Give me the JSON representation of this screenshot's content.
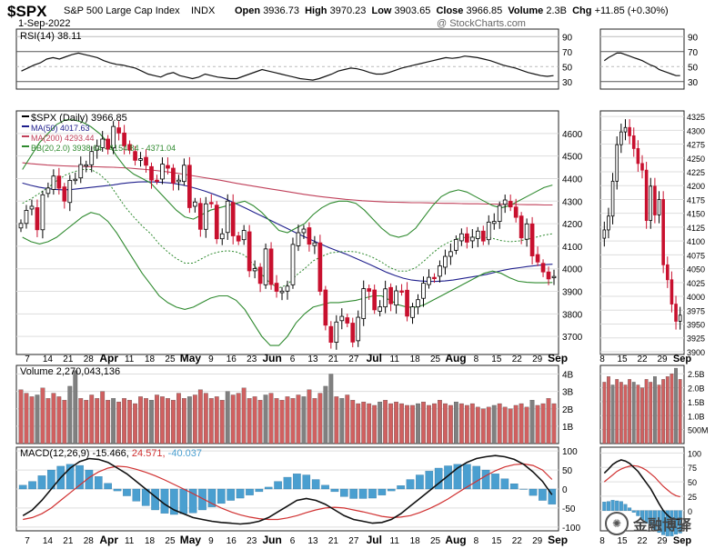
{
  "header": {
    "symbol": "$SPX",
    "name": "S&P 500 Large Cap Index",
    "exchange": "INDX",
    "date": "1-Sep-2022",
    "open_label": "Open",
    "open": "3936.73",
    "high_label": "High",
    "high": "3970.23",
    "low_label": "Low",
    "low": "3903.65",
    "close_label": "Close",
    "close": "3966.85",
    "volume_label": "Volume",
    "volume": "2.3B",
    "chg_label": "Chg",
    "chg": "+11.85 (+0.30%)",
    "attribution": "@ StockCharts.com"
  },
  "watermark": "金融博驿",
  "colors": {
    "up": "#ffffff",
    "down": "#c8102e",
    "ma50": "#1f1f8c",
    "ma200": "#c0405a",
    "bb": "#2f8a2f",
    "rsi": "#111111",
    "macd": "#111111",
    "signal": "#d03030",
    "hist": "#4a9fd0",
    "vol_up": "#d06060",
    "vol_down": "#808080"
  },
  "x_axis": {
    "labels": [
      "7",
      "14",
      "21",
      "28",
      "Apr",
      "11",
      "18",
      "25",
      "May",
      "9",
      "16",
      "23",
      "Jun",
      "6",
      "13",
      "21",
      "27",
      "Jul",
      "11",
      "18",
      "25",
      "Aug",
      "8",
      "15",
      "22",
      "29",
      "Sep"
    ],
    "bold": [
      "Apr",
      "May",
      "Jun",
      "Jul",
      "Aug",
      "Sep"
    ]
  },
  "side_x_axis": {
    "labels": [
      "8",
      "15",
      "22",
      "29",
      "Sep"
    ]
  },
  "chart_data": [
    {
      "type": "line",
      "panel": "rsi",
      "legend": "RSI(14) 38.11",
      "ylim": [
        20,
        100
      ],
      "ticks": [
        90,
        70,
        50,
        30
      ],
      "series": [
        {
          "name": "RSI(14)",
          "values": [
            44,
            48,
            52,
            55,
            60,
            62,
            60,
            63,
            66,
            68,
            66,
            64,
            62,
            58,
            55,
            53,
            52,
            50,
            48,
            44,
            40,
            38,
            36,
            40,
            42,
            38,
            36,
            34,
            36,
            40,
            38,
            36,
            35,
            34,
            34,
            37,
            40,
            43,
            46,
            44,
            42,
            40,
            38,
            36,
            34,
            33,
            32,
            34,
            37,
            40,
            44,
            46,
            48,
            47,
            45,
            42,
            40,
            40,
            42,
            45,
            48,
            50,
            52,
            54,
            56,
            58,
            60,
            62,
            61,
            62,
            64,
            63,
            62,
            60,
            58,
            55,
            52,
            50,
            48,
            45,
            42,
            40,
            38,
            37,
            38
          ]
        }
      ],
      "side_series": [
        {
          "name": "RSI(14)",
          "values": [
            58,
            62,
            65,
            68,
            68,
            66,
            64,
            62,
            60,
            58,
            55,
            52,
            50,
            46,
            44,
            42,
            40,
            38,
            38
          ]
        }
      ],
      "side_ticks": [
        90,
        70,
        50,
        30
      ]
    },
    {
      "type": "candlestick",
      "panel": "price",
      "legend": [
        {
          "name": "$SPX (Daily) 3966.85",
          "color": "#000000"
        },
        {
          "name": "MA(50) 4017.63",
          "color": "#1f1f8c"
        },
        {
          "name": "MA(200) 4293.44",
          "color": "#c0405a"
        },
        {
          "name": "BB(20,2.0) 3938.64 - 4154.84 - 4371.04",
          "color": "#2f8a2f"
        }
      ],
      "ylim": [
        3620,
        4700
      ],
      "ticks": [
        4600,
        4500,
        4400,
        4300,
        4200,
        4100,
        4000,
        3900,
        3800,
        3700
      ],
      "close": [
        4201,
        4259,
        4277,
        4173,
        4328,
        4358,
        4411,
        4357,
        4300,
        4392,
        4397,
        4462,
        4461,
        4520,
        4543,
        4575,
        4530,
        4631,
        4602,
        4545,
        4526,
        4481,
        4488,
        4459,
        4393,
        4392,
        4464,
        4446,
        4380,
        4393,
        4459,
        4271,
        4296,
        4175,
        4288,
        4288,
        4133,
        4155,
        4300,
        4146,
        4123,
        4170,
        3991,
        4001,
        3935,
        4088,
        3930,
        3900,
        3901,
        3923,
        4108,
        4160,
        4176,
        4109,
        4115,
        3900,
        3750,
        3674,
        3764,
        3789,
        3759,
        3675,
        3785,
        3912,
        3900,
        3818,
        3831,
        3911,
        3845,
        3902,
        3899,
        3790,
        3831,
        3863,
        3936,
        3962,
        3961,
        4013,
        4055,
        4076,
        4130,
        4155,
        4118,
        4140,
        4167,
        4123,
        4207,
        4210,
        4280,
        4305,
        4274,
        4228,
        4137,
        4199,
        4057,
        4030,
        3986,
        3955,
        3966
      ],
      "series": [
        {
          "name": "MA(50)",
          "values": [
            4380,
            4370,
            4362,
            4356,
            4352,
            4350,
            4352,
            4356,
            4360,
            4364,
            4368,
            4372,
            4378,
            4382,
            4385,
            4386,
            4385,
            4383,
            4380,
            4374,
            4366,
            4356,
            4345,
            4332,
            4318,
            4302,
            4285,
            4268,
            4250,
            4232,
            4214,
            4196,
            4178,
            4160,
            4143,
            4126,
            4110,
            4094,
            4080,
            4066,
            4050,
            4034,
            4018,
            4001,
            3984,
            3970,
            3958,
            3950,
            3946,
            3944,
            3944,
            3946,
            3950,
            3956,
            3962,
            3968,
            3975,
            3984,
            3993,
            4000,
            4005,
            4010,
            4014,
            4018,
            4020
          ]
        },
        {
          "name": "MA(200)",
          "values": [
            4470,
            4466,
            4463,
            4460,
            4458,
            4456,
            4455,
            4454,
            4453,
            4452,
            4451,
            4450,
            4448,
            4446,
            4443,
            4440,
            4436,
            4432,
            4427,
            4422,
            4416,
            4410,
            4404,
            4398,
            4392,
            4385,
            4378,
            4372,
            4366,
            4360,
            4354,
            4348,
            4342,
            4336,
            4330,
            4325,
            4320,
            4316,
            4312,
            4308,
            4305,
            4302,
            4300,
            4298,
            4296,
            4295,
            4294,
            4293,
            4293,
            4292,
            4291,
            4290,
            4290,
            4289,
            4288,
            4288,
            4287,
            4287,
            4286,
            4286,
            4285,
            4284,
            4284,
            4283,
            4283
          ]
        },
        {
          "name": "BB upper",
          "values": [
            4440,
            4500,
            4560,
            4600,
            4640,
            4660,
            4660,
            4650,
            4630,
            4600,
            4560,
            4500,
            4450,
            4420,
            4400,
            4380,
            4340,
            4300,
            4260,
            4230,
            4220,
            4240,
            4260,
            4270,
            4280,
            4290,
            4300,
            4280,
            4250,
            4210,
            4170,
            4160,
            4180,
            4200,
            4240,
            4270,
            4290,
            4300,
            4300,
            4290,
            4260,
            4220,
            4180,
            4150,
            4140,
            4150,
            4180,
            4230,
            4280,
            4320,
            4340,
            4350,
            4340,
            4320,
            4300,
            4280,
            4270,
            4280,
            4300,
            4320,
            4340,
            4360,
            4371
          ]
        },
        {
          "name": "BB lower",
          "values": [
            4140,
            4120,
            4110,
            4120,
            4140,
            4170,
            4200,
            4230,
            4250,
            4240,
            4210,
            4160,
            4100,
            4040,
            3980,
            3930,
            3880,
            3850,
            3830,
            3820,
            3830,
            3850,
            3870,
            3880,
            3880,
            3860,
            3820,
            3760,
            3700,
            3660,
            3660,
            3700,
            3760,
            3800,
            3830,
            3840,
            3850,
            3850,
            3855,
            3860,
            3870,
            3880,
            3880,
            3860,
            3840,
            3830,
            3830,
            3840,
            3860,
            3880,
            3900,
            3920,
            3940,
            3960,
            3980,
            3990,
            3980,
            3960,
            3945,
            3940,
            3938,
            3938,
            3939
          ]
        }
      ],
      "side_close": [
        4120,
        4145,
        4208,
        4274,
        4297,
        4305,
        4290,
        4267,
        4240,
        4228,
        4137,
        4199,
        4147,
        4175,
        4057,
        4030,
        3986,
        3955,
        3966
      ],
      "side_ticks": [
        4325,
        4300,
        4275,
        4250,
        4225,
        4200,
        4175,
        4150,
        4125,
        4100,
        4075,
        4050,
        4025,
        4000,
        3975,
        3950,
        3925,
        3900
      ],
      "side_ylim": [
        3895,
        4335
      ]
    },
    {
      "type": "bar",
      "panel": "volume",
      "legend": "Volume 2,270,043,136",
      "ylim": [
        0,
        4500000000
      ],
      "ticks": [
        "4B",
        "3B",
        "2B",
        "1B"
      ],
      "tick_values": [
        4000000000,
        3000000000,
        2000000000,
        1000000000
      ],
      "values": [
        3.1,
        2.9,
        2.7,
        2.8,
        3.2,
        2.6,
        2.9,
        2.7,
        2.5,
        3.3,
        4.2,
        2.6,
        2.5,
        2.8,
        2.6,
        3.0,
        2.5,
        2.6,
        2.4,
        2.6,
        2.5,
        2.3,
        2.7,
        2.6,
        2.5,
        2.8,
        2.7,
        2.6,
        2.5,
        2.9,
        2.6,
        2.7,
        2.8,
        3.1,
        2.9,
        2.6,
        2.7,
        2.5,
        3.0,
        2.8,
        2.9,
        3.2,
        2.6,
        2.7,
        2.5,
        2.8,
        2.9,
        2.6,
        2.5,
        2.7,
        2.6,
        2.8,
        2.7,
        3.1,
        2.6,
        2.9,
        3.3,
        4.0,
        2.7,
        2.6,
        2.8,
        2.5,
        2.3,
        2.4,
        2.3,
        2.2,
        2.4,
        2.5,
        2.3,
        2.4,
        2.3,
        2.2,
        2.2,
        2.3,
        2.4,
        2.2,
        2.3,
        2.5,
        2.3,
        2.2,
        2.4,
        2.3,
        2.2,
        2.3,
        2.1,
        2.0,
        2.1,
        2.2,
        2.3,
        2.1,
        2.0,
        2.2,
        2.3,
        2.1,
        2.5,
        2.2,
        2.3,
        2.6,
        2.3
      ],
      "side_values": [
        2.2,
        2.4,
        2.1,
        2.3,
        2.2,
        2.1,
        2.3,
        2.2,
        2.1,
        2.0,
        2.3,
        2.2,
        2.4,
        2.1,
        2.3,
        2.4,
        2.5,
        2.7,
        2.3
      ],
      "side_ticks": [
        "2.5B",
        "2.0B",
        "1.5B",
        "1.0B",
        "500M"
      ],
      "side_tick_values": [
        2500000000,
        2000000000,
        1500000000,
        1000000000,
        500000000
      ],
      "side_ylim": [
        0,
        2800000000
      ]
    },
    {
      "type": "line",
      "panel": "macd",
      "legend": {
        "label": "MACD(12,26,9)",
        "macd": "-15.466",
        "signal": "24.571",
        "hist": "-40.037"
      },
      "ylim": [
        -110,
        110
      ],
      "ticks": [
        100,
        50,
        0,
        -50,
        -100
      ],
      "series": [
        {
          "name": "MACD",
          "values": [
            -70,
            -55,
            -30,
            0,
            30,
            55,
            72,
            80,
            78,
            70,
            55,
            40,
            20,
            0,
            -20,
            -40,
            -55,
            -65,
            -75,
            -80,
            -85,
            -88,
            -90,
            -92,
            -90,
            -85,
            -75,
            -60,
            -45,
            -30,
            -25,
            -30,
            -40,
            -55,
            -70,
            -80,
            -85,
            -90,
            -88,
            -80,
            -65,
            -45,
            -25,
            -5,
            15,
            35,
            55,
            70,
            80,
            85,
            88,
            85,
            78,
            65,
            45,
            20,
            -15
          ]
        },
        {
          "name": "Signal",
          "values": [
            -80,
            -75,
            -65,
            -50,
            -30,
            -10,
            10,
            30,
            45,
            55,
            60,
            58,
            52,
            44,
            35,
            24,
            12,
            0,
            -12,
            -25,
            -38,
            -50,
            -60,
            -68,
            -74,
            -78,
            -80,
            -80,
            -76,
            -70,
            -62,
            -55,
            -50,
            -48,
            -50,
            -55,
            -60,
            -66,
            -72,
            -75,
            -74,
            -70,
            -62,
            -52,
            -40,
            -26,
            -10,
            5,
            20,
            35,
            48,
            58,
            64,
            66,
            62,
            50,
            25
          ]
        }
      ],
      "side_macd": [
        65,
        72,
        80,
        85,
        88,
        86,
        82,
        75,
        68,
        58,
        48,
        38,
        25,
        12,
        0,
        -8,
        -14,
        -15,
        -15
      ],
      "side_signal": [
        50,
        56,
        62,
        68,
        72,
        75,
        77,
        78,
        77,
        74,
        70,
        64,
        58,
        50,
        42,
        36,
        30,
        26,
        24
      ],
      "side_ticks": [
        100,
        75,
        50,
        25,
        0
      ],
      "side_ylim": [
        -35,
        110
      ]
    }
  ]
}
